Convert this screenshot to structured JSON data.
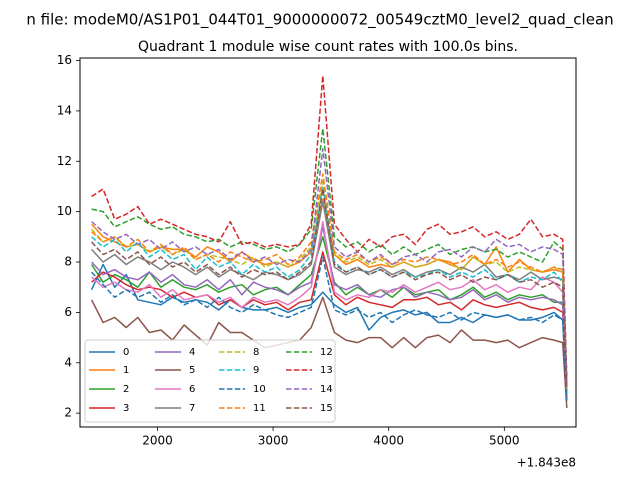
{
  "chart_data": {
    "type": "line",
    "suptitle": "n file: modeM0/AS1P01_044T01_9000000072_00549cztM0_level2_quad_clean",
    "title": "Quadrant 1 module wise count rates with 100.0s bins.",
    "xlabel": "",
    "ylabel": "",
    "x_offset_label": "+1.843e8",
    "xlim": [
      1330,
      5620
    ],
    "ylim": [
      1.45,
      16.1
    ],
    "xticks": [
      2000,
      3000,
      4000,
      5000
    ],
    "xtick_labels": [
      "2000",
      "3000",
      "4000",
      "5000"
    ],
    "yticks": [
      2,
      4,
      6,
      8,
      10,
      12,
      14,
      16
    ],
    "ytick_labels": [
      "2",
      "4",
      "6",
      "8",
      "10",
      "12",
      "14",
      "16"
    ],
    "grid": false,
    "legend_position": "lower-left",
    "x": [
      1430,
      1530,
      1630,
      1730,
      1830,
      1930,
      2030,
      2130,
      2230,
      2330,
      2430,
      2530,
      2630,
      2730,
      2830,
      2930,
      3030,
      3130,
      3230,
      3330,
      3430,
      3530,
      3630,
      3730,
      3830,
      3930,
      4030,
      4130,
      4230,
      4330,
      4430,
      4530,
      4630,
      4730,
      4830,
      4930,
      5030,
      5130,
      5230,
      5330,
      5430,
      5505,
      5540
    ],
    "series": [
      {
        "name": "0",
        "color": "#1f77b4",
        "dash": "solid",
        "values": [
          6.9,
          7.9,
          7.0,
          7.5,
          6.5,
          6.4,
          6.3,
          6.6,
          6.4,
          6.5,
          6.4,
          6.1,
          6.5,
          6.2,
          6.1,
          6.1,
          6.2,
          6.0,
          6.2,
          6.3,
          6.8,
          6.3,
          6.0,
          6.2,
          5.3,
          5.8,
          6.0,
          6.1,
          5.9,
          6.0,
          5.6,
          5.6,
          5.8,
          5.6,
          5.9,
          5.8,
          5.9,
          5.7,
          5.7,
          5.8,
          6.0,
          5.7,
          2.6
        ]
      },
      {
        "name": "1",
        "color": "#ff7f0e",
        "dash": "solid",
        "values": [
          9.5,
          9.0,
          8.8,
          8.6,
          8.7,
          8.4,
          8.6,
          8.5,
          8.5,
          8.2,
          8.6,
          8.4,
          8.0,
          8.4,
          8.1,
          7.9,
          8.0,
          7.8,
          8.0,
          8.4,
          10.5,
          8.3,
          7.9,
          8.1,
          7.8,
          7.9,
          7.8,
          8.0,
          7.8,
          7.9,
          8.1,
          8.0,
          7.7,
          8.2,
          7.9,
          8.6,
          7.6,
          8.1,
          7.7,
          7.6,
          7.7,
          7.6,
          3.0
        ]
      },
      {
        "name": "2",
        "color": "#2ca02c",
        "dash": "solid",
        "values": [
          7.9,
          7.2,
          7.5,
          7.3,
          7.0,
          7.6,
          7.0,
          7.3,
          7.0,
          6.9,
          7.1,
          6.8,
          7.0,
          7.1,
          6.7,
          6.9,
          7.0,
          6.7,
          7.1,
          7.5,
          9.0,
          7.2,
          6.7,
          7.0,
          6.7,
          6.9,
          6.6,
          7.0,
          6.7,
          6.8,
          6.9,
          6.5,
          6.7,
          7.0,
          6.6,
          6.8,
          6.5,
          6.7,
          6.6,
          6.7,
          6.4,
          6.4,
          2.6
        ]
      },
      {
        "name": "3",
        "color": "#d62728",
        "dash": "solid",
        "values": [
          7.2,
          7.6,
          7.4,
          7.1,
          6.9,
          7.0,
          6.9,
          6.6,
          6.8,
          6.6,
          6.7,
          6.3,
          6.5,
          6.2,
          6.5,
          6.3,
          6.4,
          6.1,
          6.4,
          6.5,
          8.4,
          6.7,
          6.3,
          6.6,
          6.4,
          6.3,
          6.2,
          6.5,
          6.5,
          6.6,
          6.3,
          6.4,
          6.1,
          6.5,
          6.3,
          6.2,
          6.3,
          6.4,
          6.2,
          6.1,
          6.2,
          6.0,
          2.5
        ]
      },
      {
        "name": "4",
        "color": "#9467bd",
        "dash": "solid",
        "values": [
          8.0,
          7.5,
          7.7,
          7.4,
          7.3,
          7.6,
          7.2,
          7.5,
          7.1,
          7.0,
          7.3,
          6.9,
          7.3,
          6.7,
          7.2,
          7.0,
          6.9,
          6.7,
          7.0,
          7.2,
          9.4,
          7.1,
          6.9,
          7.1,
          6.7,
          6.6,
          6.9,
          7.0,
          6.6,
          6.8,
          6.7,
          6.5,
          6.6,
          6.9,
          6.5,
          6.7,
          6.4,
          6.6,
          6.5,
          6.6,
          6.5,
          6.3,
          2.6
        ]
      },
      {
        "name": "5",
        "color": "#8c564b",
        "dash": "solid",
        "values": [
          6.5,
          5.6,
          5.8,
          5.4,
          5.8,
          5.2,
          5.3,
          4.9,
          5.5,
          5.1,
          4.7,
          5.6,
          5.2,
          5.2,
          4.9,
          4.6,
          4.7,
          4.8,
          4.9,
          5.4,
          6.6,
          5.2,
          4.9,
          4.8,
          5.0,
          5.0,
          4.6,
          5.0,
          4.6,
          5.0,
          5.1,
          4.8,
          5.3,
          4.9,
          4.9,
          4.8,
          4.9,
          4.6,
          4.8,
          5.0,
          4.9,
          4.8,
          2.2
        ]
      },
      {
        "name": "6",
        "color": "#e377c2",
        "dash": "solid",
        "values": [
          7.4,
          7.0,
          7.2,
          6.9,
          6.8,
          7.1,
          6.6,
          6.9,
          6.5,
          6.6,
          6.7,
          6.4,
          6.6,
          6.2,
          6.6,
          6.4,
          6.5,
          6.3,
          6.6,
          7.0,
          9.6,
          6.8,
          6.5,
          6.7,
          6.6,
          6.9,
          6.8,
          7.1,
          6.8,
          7.0,
          7.2,
          6.9,
          7.0,
          7.3,
          6.9,
          7.1,
          6.8,
          7.0,
          6.9,
          7.4,
          7.2,
          6.8,
          2.7
        ]
      },
      {
        "name": "7",
        "color": "#7f7f7f",
        "dash": "solid",
        "values": [
          8.5,
          8.0,
          8.3,
          7.9,
          8.2,
          8.0,
          7.7,
          8.0,
          7.8,
          7.5,
          7.8,
          7.4,
          7.7,
          7.5,
          7.3,
          7.6,
          7.5,
          7.3,
          7.5,
          7.9,
          10.4,
          7.8,
          7.5,
          7.7,
          7.6,
          7.8,
          7.5,
          7.7,
          7.4,
          7.6,
          7.7,
          7.5,
          7.8,
          7.6,
          7.9,
          7.4,
          7.5,
          7.3,
          7.6,
          7.3,
          7.4,
          7.3,
          2.9
        ]
      },
      {
        "name": "8",
        "color": "#bcbd22",
        "dash": "dashed",
        "values": [
          9.3,
          8.8,
          9.0,
          8.6,
          8.7,
          8.4,
          8.6,
          8.3,
          8.5,
          8.1,
          8.3,
          8.2,
          8.1,
          7.9,
          8.2,
          7.8,
          8.0,
          7.8,
          8.1,
          8.6,
          11.2,
          8.3,
          8.0,
          8.2,
          7.9,
          8.1,
          7.8,
          8.0,
          7.8,
          7.9,
          8.1,
          7.9,
          7.7,
          8.2,
          7.9,
          8.0,
          7.6,
          7.8,
          7.7,
          7.6,
          7.8,
          7.6,
          3.0
        ]
      },
      {
        "name": "9",
        "color": "#17becf",
        "dash": "dashed",
        "values": [
          9.0,
          8.6,
          8.9,
          8.4,
          8.8,
          8.2,
          8.5,
          8.1,
          8.3,
          7.7,
          8.2,
          7.8,
          8.0,
          7.5,
          7.9,
          7.6,
          7.8,
          7.4,
          7.7,
          8.3,
          11.0,
          8.0,
          7.6,
          7.8,
          7.5,
          7.7,
          7.4,
          7.6,
          7.4,
          7.5,
          7.7,
          7.4,
          7.6,
          7.4,
          7.7,
          7.3,
          7.5,
          7.2,
          7.4,
          7.3,
          7.6,
          7.2,
          2.9
        ]
      },
      {
        "name": "10",
        "color": "#1f77b4",
        "dash": "dashed",
        "values": [
          7.6,
          7.1,
          6.6,
          6.9,
          6.6,
          6.8,
          6.4,
          6.7,
          6.3,
          6.5,
          6.2,
          6.6,
          6.2,
          6.0,
          6.3,
          6.1,
          5.9,
          5.8,
          6.0,
          6.2,
          8.2,
          6.1,
          5.9,
          6.1,
          5.8,
          6.0,
          5.6,
          5.9,
          6.1,
          5.9,
          5.8,
          6.0,
          5.7,
          6.0,
          5.9,
          5.8,
          5.9,
          5.7,
          5.8,
          5.6,
          5.9,
          5.7,
          2.5
        ]
      },
      {
        "name": "11",
        "color": "#ff7f0e",
        "dash": "dashed",
        "values": [
          9.2,
          8.8,
          9.0,
          8.6,
          8.9,
          8.4,
          8.7,
          8.3,
          8.6,
          8.1,
          8.3,
          8.0,
          8.4,
          8.2,
          8.0,
          8.1,
          8.3,
          7.9,
          8.2,
          8.8,
          11.5,
          8.4,
          8.1,
          8.3,
          8.0,
          8.2,
          7.9,
          8.1,
          8.0,
          8.2,
          8.1,
          7.9,
          8.0,
          8.3,
          7.9,
          8.1,
          7.8,
          8.0,
          7.8,
          7.6,
          7.8,
          7.7,
          3.0
        ]
      },
      {
        "name": "12",
        "color": "#2ca02c",
        "dash": "dashed",
        "values": [
          10.1,
          10.0,
          9.4,
          9.6,
          9.8,
          9.5,
          9.3,
          9.4,
          9.1,
          9.0,
          8.8,
          8.9,
          8.6,
          8.8,
          8.7,
          8.5,
          8.6,
          8.4,
          8.7,
          9.3,
          13.3,
          9.0,
          8.6,
          8.8,
          8.4,
          8.7,
          8.3,
          8.6,
          8.3,
          8.5,
          8.7,
          8.3,
          8.5,
          8.6,
          8.4,
          8.5,
          8.2,
          8.4,
          8.2,
          8.0,
          8.8,
          8.5,
          3.2
        ]
      },
      {
        "name": "13",
        "color": "#d62728",
        "dash": "dashed",
        "values": [
          10.6,
          10.9,
          9.7,
          9.9,
          10.2,
          9.5,
          9.7,
          9.5,
          9.3,
          9.1,
          9.0,
          8.8,
          9.6,
          8.7,
          8.8,
          8.6,
          8.7,
          8.6,
          8.7,
          9.5,
          15.4,
          9.5,
          8.9,
          8.4,
          8.9,
          8.6,
          9.0,
          9.1,
          8.7,
          9.3,
          9.5,
          9.1,
          9.2,
          9.4,
          9.0,
          9.2,
          8.9,
          9.1,
          9.7,
          9.0,
          9.1,
          8.9,
          3.4
        ]
      },
      {
        "name": "14",
        "color": "#9467bd",
        "dash": "dashed",
        "values": [
          9.6,
          9.2,
          8.9,
          9.1,
          8.7,
          8.9,
          8.5,
          8.8,
          8.4,
          8.6,
          8.3,
          8.5,
          8.1,
          8.4,
          8.0,
          8.2,
          7.9,
          8.1,
          8.0,
          8.5,
          12.5,
          8.6,
          8.2,
          8.4,
          8.0,
          8.3,
          7.9,
          8.2,
          8.3,
          8.0,
          8.4,
          8.5,
          8.2,
          8.6,
          8.4,
          8.9,
          8.6,
          8.7,
          8.4,
          8.6,
          8.5,
          8.3,
          3.1
        ]
      },
      {
        "name": "15",
        "color": "#8c564b",
        "dash": "dashed",
        "values": [
          8.8,
          8.3,
          8.5,
          8.1,
          8.4,
          7.9,
          8.2,
          7.8,
          8.0,
          7.6,
          7.9,
          7.5,
          7.8,
          7.4,
          7.7,
          7.5,
          7.6,
          7.3,
          7.6,
          8.0,
          10.9,
          7.9,
          7.6,
          7.8,
          7.5,
          7.7,
          7.4,
          7.6,
          7.3,
          7.5,
          7.6,
          7.3,
          7.5,
          7.2,
          7.4,
          7.3,
          7.5,
          7.2,
          7.3,
          7.0,
          7.2,
          7.0,
          2.9
        ]
      }
    ]
  }
}
